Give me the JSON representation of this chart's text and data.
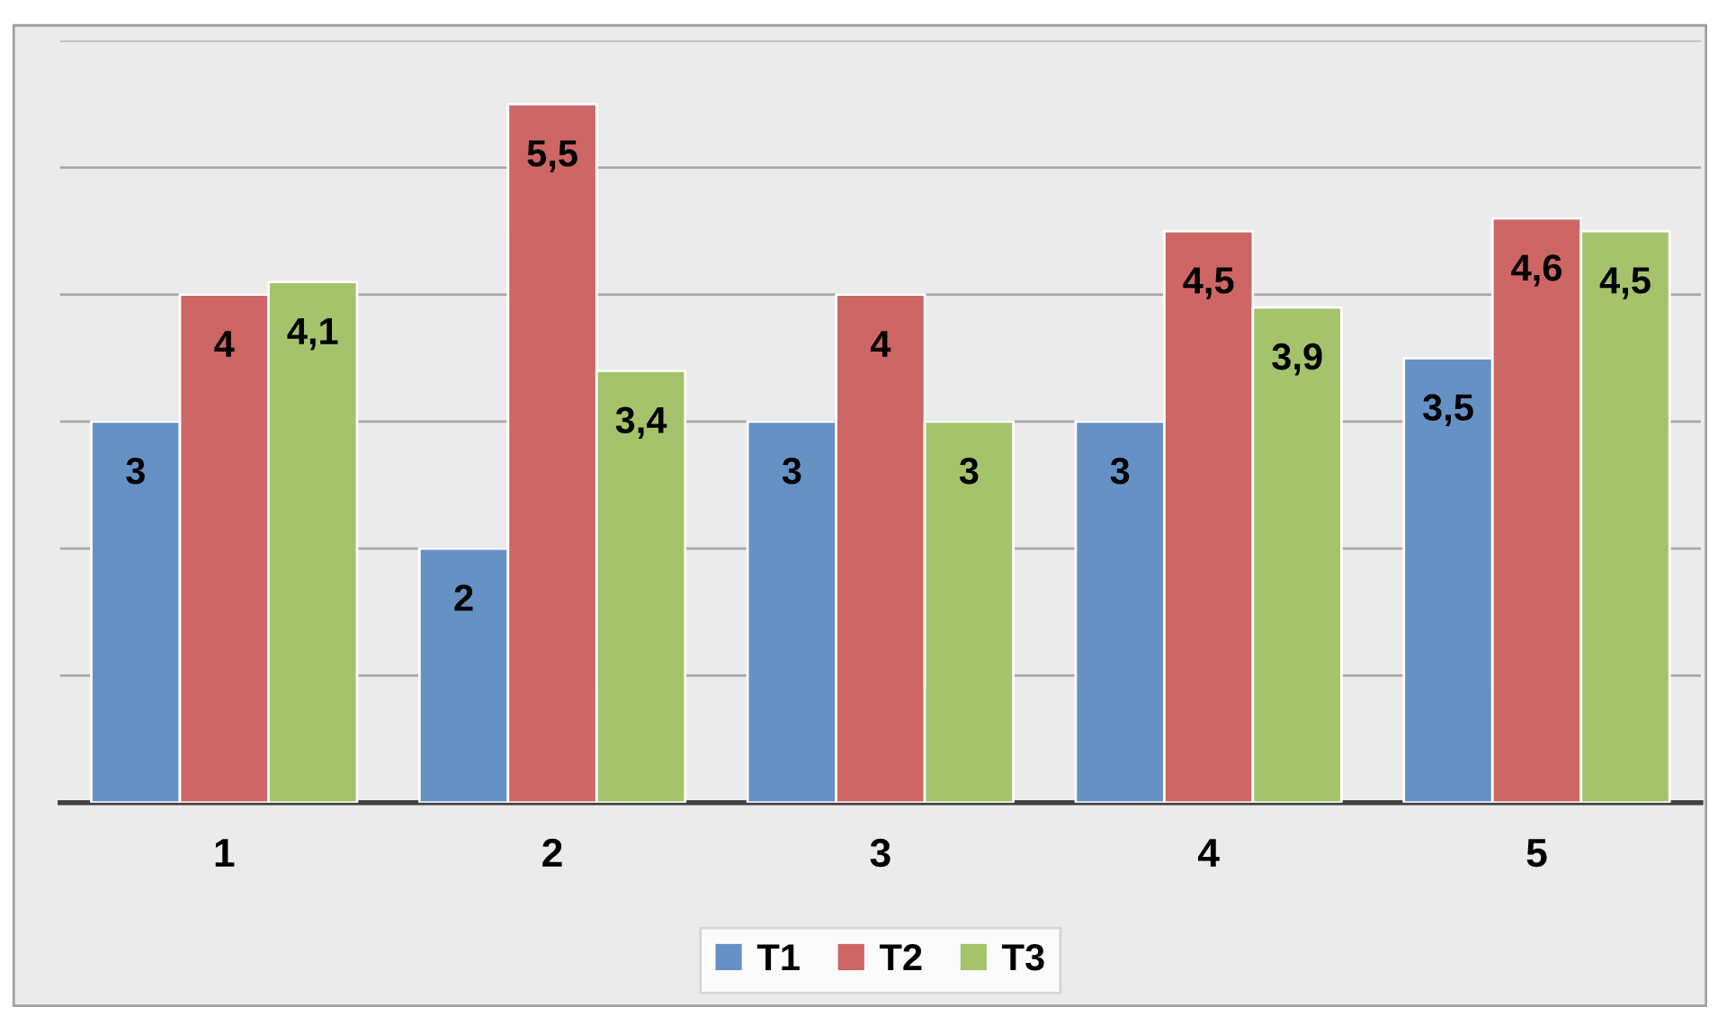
{
  "chart_data": {
    "type": "bar",
    "categories": [
      "1",
      "2",
      "3",
      "4",
      "5"
    ],
    "series": [
      {
        "name": "T1",
        "color": "#6591c5",
        "values": [
          3,
          2,
          3,
          3,
          3.5
        ],
        "value_labels": [
          "3",
          "2",
          "3",
          "3",
          "3,5"
        ]
      },
      {
        "name": "T2",
        "color": "#cd6664",
        "values": [
          4,
          5.5,
          4,
          4.5,
          4.6
        ],
        "value_labels": [
          "4",
          "5,5",
          "4",
          "4,5",
          "4,6"
        ]
      },
      {
        "name": "T3",
        "color": "#a4c36b",
        "values": [
          4.1,
          3.4,
          3,
          3.9,
          4.5
        ],
        "value_labels": [
          "4,1",
          "3,4",
          "3",
          "3,9",
          "4,5"
        ]
      }
    ],
    "yticks": [
      {
        "value": 0,
        "label": null
      },
      {
        "value": 1,
        "label": null
      },
      {
        "value": 2,
        "label": null
      },
      {
        "value": 3,
        "label": null
      },
      {
        "value": 4,
        "label": null
      },
      {
        "value": 5,
        "label": null
      },
      {
        "value": 6,
        "label": null
      }
    ],
    "grid": "y",
    "legend": "bottom",
    "tick_labels": "x"
  }
}
